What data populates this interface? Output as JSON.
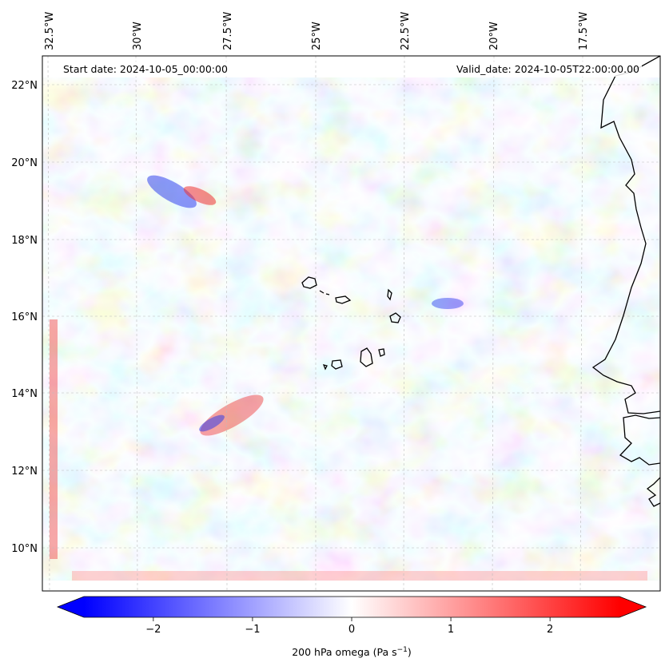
{
  "map": {
    "start_date": "Start date: 2024-10-05_00:00:00",
    "valid_date": "Valid_date: 2024-10-05T22:00:00.00",
    "lon_ticks": [
      "32.5°W",
      "30°W",
      "27.5°W",
      "25°W",
      "22.5°W",
      "20°W",
      "17.5°W"
    ],
    "lat_ticks": [
      "22°N",
      "20°N",
      "18°N",
      "16°N",
      "14°N",
      "12°N",
      "10°N"
    ],
    "field": "200 hPa omega",
    "features": [
      "coastline-west-africa",
      "cape-verde-islands"
    ]
  },
  "colorbar": {
    "label_text": "200 hPa omega (Pa s",
    "label_sup": "−1",
    "label_close": ")",
    "ticks": [
      "−2",
      "−1",
      "0",
      "1",
      "2"
    ],
    "tick_values": [
      -2,
      -1,
      0,
      1,
      2
    ],
    "vmin": -2.7,
    "vmax": 2.7,
    "extend": "both",
    "cmap": "bwr",
    "colors": {
      "low": "#0000ff",
      "mid": "#ffffff",
      "high": "#ff0000"
    }
  }
}
